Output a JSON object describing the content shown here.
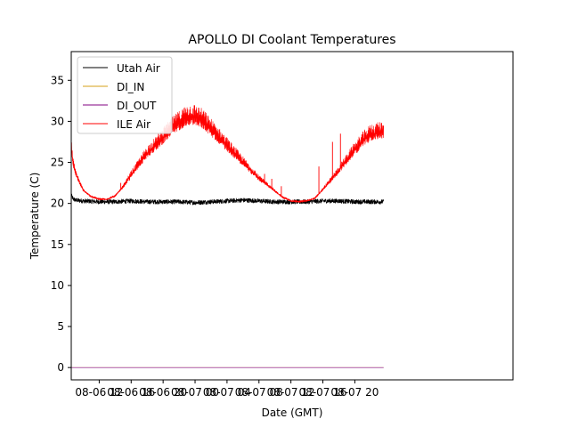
{
  "chart_data": {
    "type": "line",
    "title": "APOLLO DI Coolant Temperatures",
    "xlabel": "Date (GMT)",
    "ylabel": "Temperature (C)",
    "xlim": [
      8.5,
      63.8
    ],
    "ylim": [
      -1.5,
      38.5
    ],
    "x_units": "hours since 2022-08-06 00:00 GMT",
    "x_ticks": [
      {
        "value": 12,
        "label": "08-06 12"
      },
      {
        "value": 16,
        "label": "08-06 16"
      },
      {
        "value": 20,
        "label": "08-06 20"
      },
      {
        "value": 24,
        "label": "08-07 00"
      },
      {
        "value": 28,
        "label": "08-07 04"
      },
      {
        "value": 32,
        "label": "08-07 08"
      },
      {
        "value": 36,
        "label": "08-07 12"
      },
      {
        "value": 40,
        "label": "08-07 16"
      },
      {
        "value": 44,
        "label": "08-07 20"
      }
    ],
    "y_ticks": [
      {
        "value": 0,
        "label": "0"
      },
      {
        "value": 5,
        "label": "5"
      },
      {
        "value": 10,
        "label": "10"
      },
      {
        "value": 15,
        "label": "15"
      },
      {
        "value": 20,
        "label": "20"
      },
      {
        "value": 25,
        "label": "25"
      },
      {
        "value": 30,
        "label": "30"
      },
      {
        "value": 35,
        "label": "35"
      }
    ],
    "legend_position": "top-left",
    "series": [
      {
        "name": "Utah Air",
        "color": "#000000",
        "x": [
          8.5,
          8.7,
          9.0,
          10,
          12,
          14,
          16,
          18,
          20,
          22,
          24,
          26,
          28,
          30,
          32,
          34,
          36,
          38,
          40,
          42,
          44,
          46,
          47.6
        ],
        "y": [
          21.0,
          20.6,
          20.4,
          20.3,
          20.2,
          20.2,
          20.3,
          20.2,
          20.2,
          20.2,
          20.1,
          20.2,
          20.3,
          20.4,
          20.3,
          20.2,
          20.2,
          20.2,
          20.3,
          20.3,
          20.2,
          20.2,
          20.2
        ],
        "noise": 0.55
      },
      {
        "name": "DI_IN",
        "color": "#d4a017",
        "x": [
          8.5,
          47.6
        ],
        "y": [
          0,
          0
        ],
        "noise": 0
      },
      {
        "name": "DI_OUT",
        "color": "#800080",
        "x": [
          8.5,
          47.6
        ],
        "y": [
          0,
          0
        ],
        "noise": 0
      },
      {
        "name": "ILE Air",
        "color": "#ff0000",
        "x": [
          8.5,
          8.7,
          9.0,
          9.5,
          10,
          11,
          12,
          13,
          14,
          15,
          16,
          17,
          18,
          19,
          20,
          21,
          22,
          23,
          24,
          25,
          26,
          27,
          28,
          29,
          30,
          31,
          32,
          33,
          34,
          35,
          36,
          37,
          38,
          39,
          40,
          41,
          42,
          43,
          44,
          45,
          46,
          47,
          47.6
        ],
        "y": [
          27.0,
          25.0,
          23.8,
          22.6,
          21.6,
          20.8,
          20.5,
          20.5,
          20.9,
          22.0,
          23.5,
          24.8,
          26.1,
          27.0,
          28.0,
          29.0,
          29.8,
          30.5,
          30.5,
          30.0,
          29.0,
          28.0,
          27.0,
          26.0,
          25.0,
          24.0,
          23.0,
          22.3,
          21.5,
          20.7,
          20.3,
          20.2,
          20.3,
          20.6,
          21.7,
          22.8,
          24.0,
          25.3,
          26.5,
          27.6,
          28.4,
          28.6,
          28.8
        ],
        "noise": 1.6
      }
    ],
    "spikes": [
      {
        "x": 14.7,
        "y": 22.5
      },
      {
        "x": 15.8,
        "y": 22.8
      },
      {
        "x": 31.5,
        "y": 24.0
      },
      {
        "x": 32.7,
        "y": 23.6
      },
      {
        "x": 33.6,
        "y": 23.0
      },
      {
        "x": 34.8,
        "y": 22.1
      },
      {
        "x": 39.5,
        "y": 24.5
      },
      {
        "x": 41.2,
        "y": 27.5
      },
      {
        "x": 42.2,
        "y": 28.5
      }
    ]
  }
}
